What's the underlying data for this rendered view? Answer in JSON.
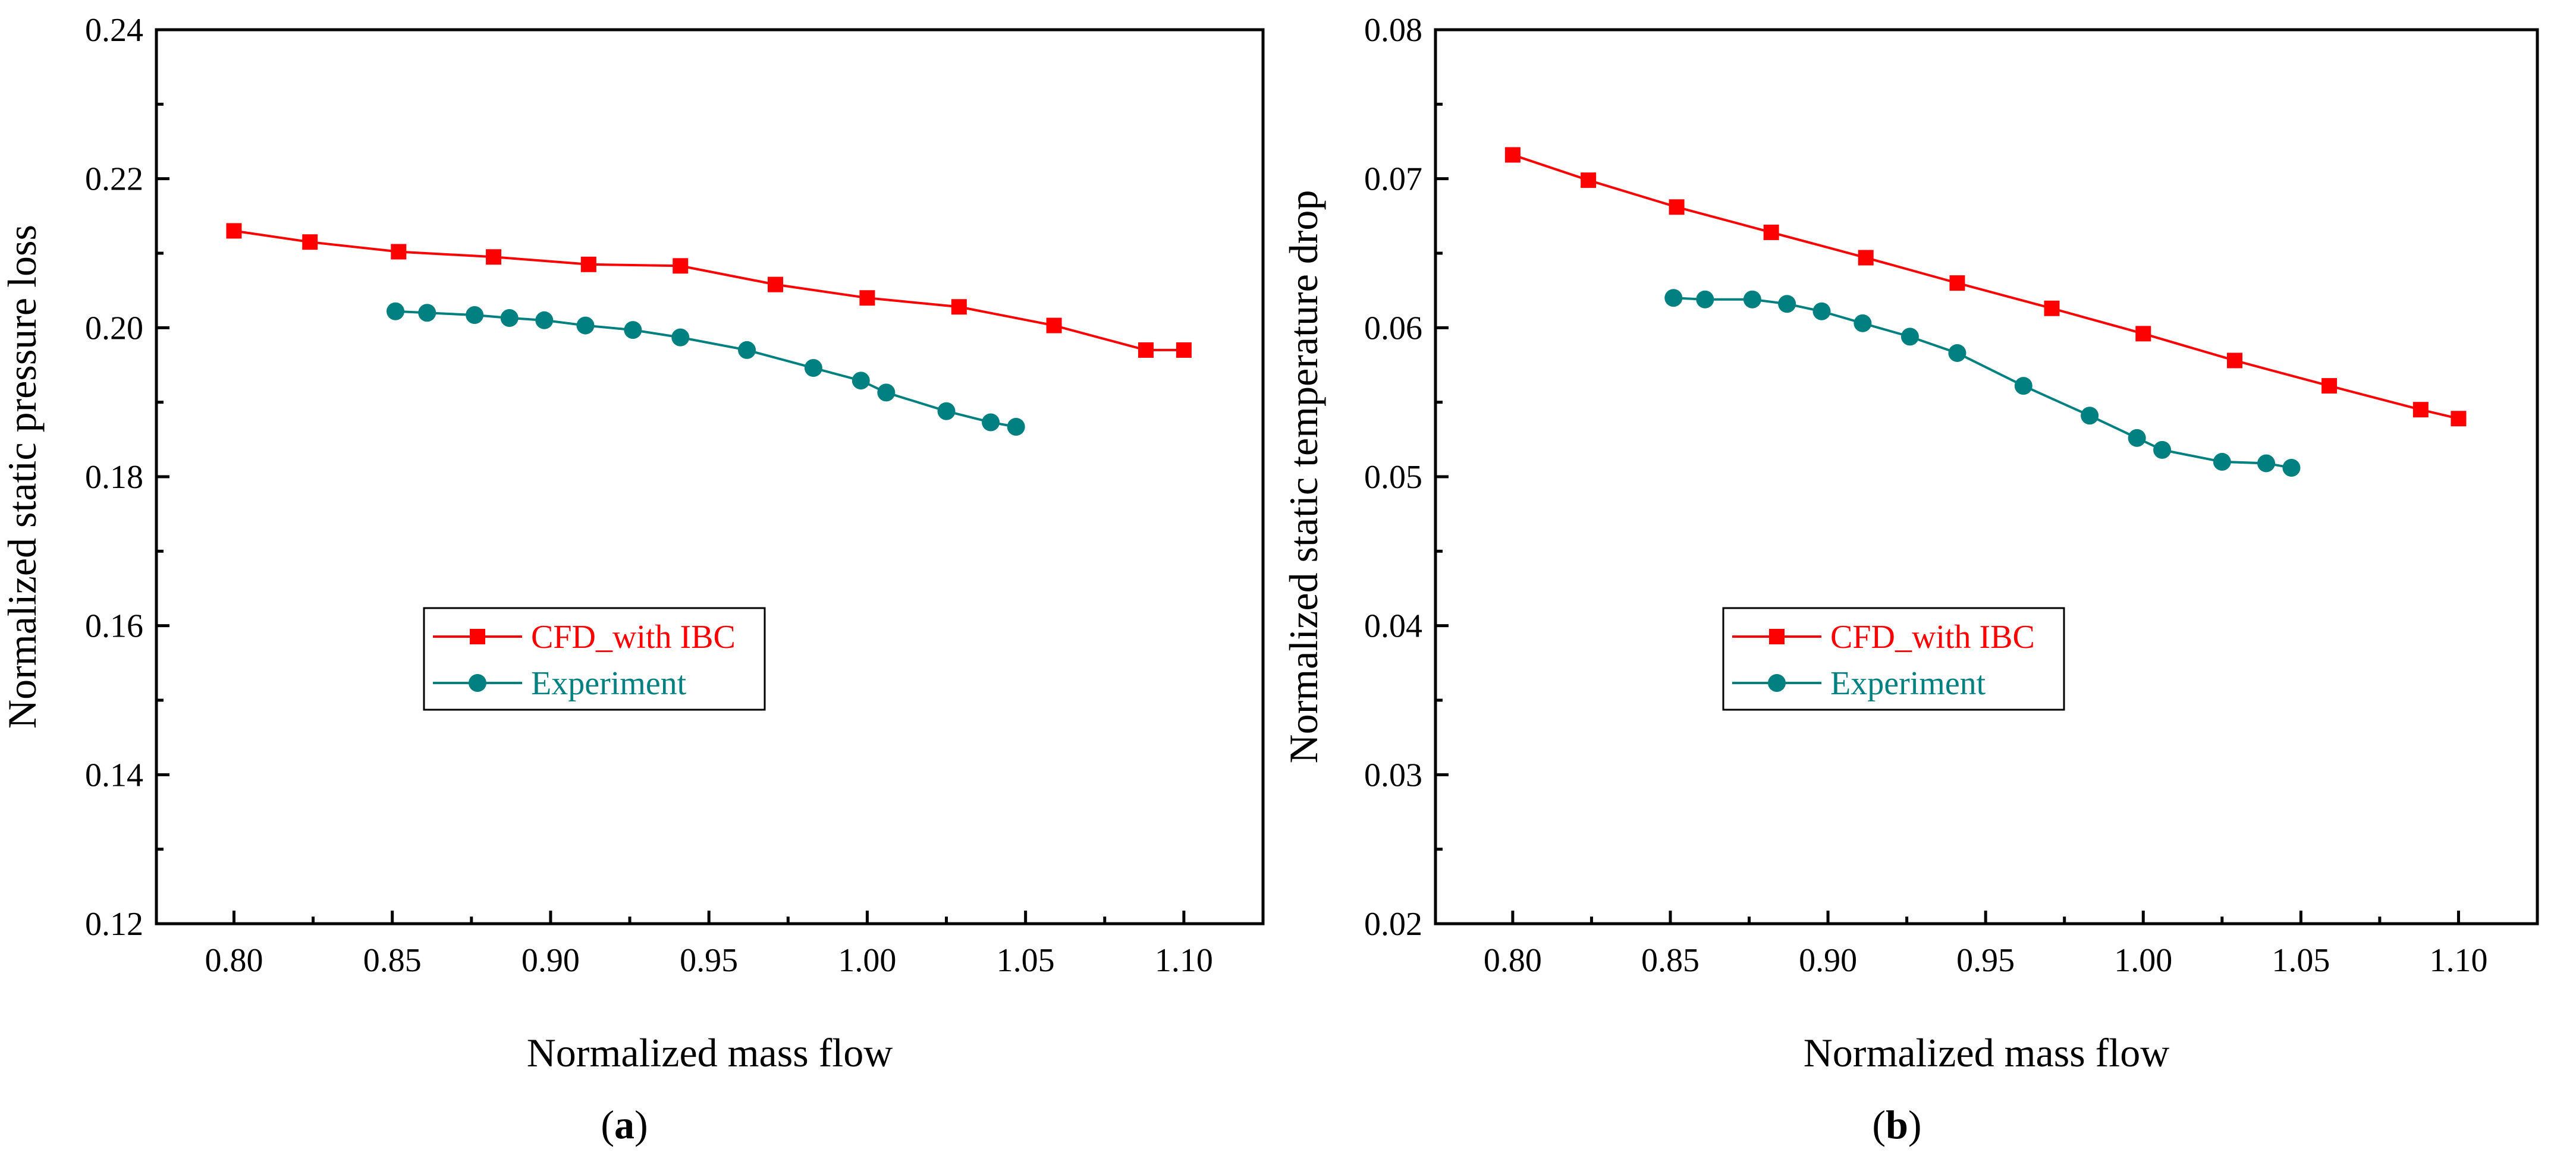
{
  "chart_data": [
    {
      "type": "line",
      "panel_label": "a",
      "xlabel": "Normalized mass flow",
      "ylabel": "Normalized static pressure loss",
      "xlim": [
        0.7755,
        1.125
      ],
      "ylim": [
        0.12,
        0.24
      ],
      "xticks": [
        0.8,
        0.85,
        0.9,
        0.95,
        1.0,
        1.05,
        1.1
      ],
      "yticks": [
        0.12,
        0.14,
        0.16,
        0.18,
        0.2,
        0.22,
        0.24
      ],
      "x_decimals": 2,
      "y_decimals": 2,
      "legend_placement": "center-left",
      "series": [
        {
          "name": "CFD_with IBC",
          "color": "#ff0000",
          "marker": "square",
          "x": [
            0.8,
            0.824,
            0.852,
            0.882,
            0.912,
            0.941,
            0.971,
            1.0,
            1.029,
            1.059,
            1.088,
            1.1
          ],
          "y": [
            0.213,
            0.2115,
            0.2102,
            0.2095,
            0.2085,
            0.2083,
            0.2058,
            0.204,
            0.2028,
            0.2003,
            0.197,
            0.197
          ]
        },
        {
          "name": "Experiment",
          "color": "#008080",
          "marker": "circle",
          "x": [
            0.851,
            0.861,
            0.876,
            0.887,
            0.898,
            0.911,
            0.926,
            0.941,
            0.962,
            0.983,
            0.998,
            1.006,
            1.025,
            1.039,
            1.047
          ],
          "y": [
            0.2022,
            0.202,
            0.2017,
            0.2013,
            0.201,
            0.2003,
            0.1997,
            0.1987,
            0.197,
            0.1946,
            0.1929,
            0.1913,
            0.1888,
            0.1873,
            0.1867
          ]
        }
      ]
    },
    {
      "type": "line",
      "panel_label": "b",
      "xlabel": "Normalized mass flow",
      "ylabel": "Normalized static temperature drop",
      "xlim": [
        0.7755,
        1.125
      ],
      "ylim": [
        0.02,
        0.08
      ],
      "xticks": [
        0.8,
        0.85,
        0.9,
        0.95,
        1.0,
        1.05,
        1.1
      ],
      "yticks": [
        0.02,
        0.03,
        0.04,
        0.05,
        0.06,
        0.07,
        0.08
      ],
      "x_decimals": 2,
      "y_decimals": 2,
      "legend_placement": "center-left",
      "series": [
        {
          "name": "CFD_with IBC",
          "color": "#ff0000",
          "marker": "square",
          "x": [
            0.8,
            0.824,
            0.852,
            0.882,
            0.912,
            0.941,
            0.971,
            1.0,
            1.029,
            1.059,
            1.088,
            1.1
          ],
          "y": [
            0.0716,
            0.0699,
            0.0681,
            0.0664,
            0.0647,
            0.063,
            0.0613,
            0.0596,
            0.0578,
            0.0561,
            0.0545,
            0.0539
          ]
        },
        {
          "name": "Experiment",
          "color": "#008080",
          "marker": "circle",
          "x": [
            0.851,
            0.861,
            0.876,
            0.887,
            0.898,
            0.911,
            0.926,
            0.941,
            0.962,
            0.983,
            0.998,
            1.006,
            1.025,
            1.039,
            1.047
          ],
          "y": [
            0.062,
            0.0619,
            0.0619,
            0.0616,
            0.0611,
            0.0603,
            0.0594,
            0.0583,
            0.0561,
            0.0541,
            0.0526,
            0.0518,
            0.051,
            0.0509,
            0.0506
          ]
        }
      ]
    }
  ]
}
